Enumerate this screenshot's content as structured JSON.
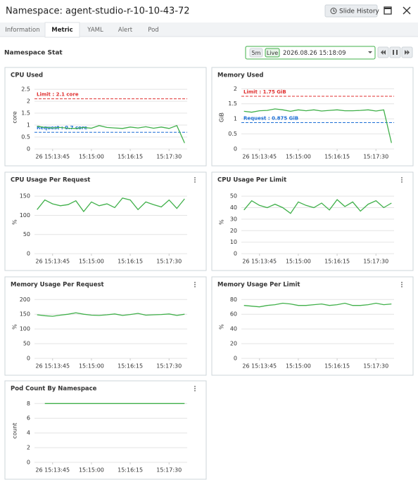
{
  "header": {
    "title": "Namespace: agent-studio-r-10-10-43-72",
    "slide_history": "Slide History"
  },
  "tabs": [
    "Information",
    "Metric",
    "YAML",
    "Alert",
    "Pod"
  ],
  "active_tab": 1,
  "section_title": "Namespace Stat",
  "controls": {
    "range": "5m",
    "live": "Live",
    "time": "2026.08.26 15:18:09"
  },
  "chart_data": [
    {
      "type": "line",
      "title": "CPU Used",
      "ylabel": "core",
      "color": "#40b04a",
      "x": [
        "15:13:15",
        "15:13:30",
        "15:13:45",
        "15:14:00",
        "15:14:15",
        "15:14:30",
        "15:14:45",
        "15:15:00",
        "15:15:15",
        "15:15:30",
        "15:15:45",
        "15:16:00",
        "15:16:15",
        "15:16:30",
        "15:16:45",
        "15:17:00",
        "15:17:15",
        "15:17:30",
        "15:17:45",
        "15:18:00"
      ],
      "values": [
        0.95,
        0.9,
        0.88,
        0.9,
        0.87,
        0.86,
        0.9,
        0.87,
        0.98,
        0.9,
        0.88,
        0.86,
        0.92,
        0.88,
        0.93,
        0.87,
        0.92,
        0.86,
        0.98,
        0.25
      ],
      "xlim": [
        "15:13:10",
        "15:18:05"
      ],
      "xticks": [
        {
          "value": "15:13:45",
          "label": "26 15:13:45"
        },
        "15:15:00",
        "15:16:15",
        "15:17:30"
      ],
      "ylim": [
        0,
        2.65
      ],
      "yticks": [
        0,
        0.5,
        1,
        1.5,
        2,
        2.5
      ],
      "reference_lines": [
        {
          "label": "Limit : 2.1 core",
          "value": 2.1,
          "color": "#e03131"
        },
        {
          "label": "Request : 0.7 core",
          "value": 0.7,
          "color": "#1c6fd6"
        }
      ]
    },
    {
      "type": "line",
      "title": "Memory Used",
      "ylabel": "GiB",
      "color": "#40b04a",
      "x": [
        "15:13:15",
        "15:13:30",
        "15:13:45",
        "15:14:00",
        "15:14:15",
        "15:14:30",
        "15:14:45",
        "15:15:00",
        "15:15:15",
        "15:15:30",
        "15:15:45",
        "15:16:00",
        "15:16:15",
        "15:16:30",
        "15:16:45",
        "15:17:00",
        "15:17:15",
        "15:17:30",
        "15:17:45",
        "15:18:00"
      ],
      "values": [
        1.25,
        1.22,
        1.27,
        1.28,
        1.33,
        1.3,
        1.25,
        1.3,
        1.27,
        1.3,
        1.26,
        1.28,
        1.3,
        1.27,
        1.27,
        1.28,
        1.3,
        1.26,
        1.3,
        0.2
      ],
      "xlim": [
        "15:13:10",
        "15:18:05"
      ],
      "xticks": [
        {
          "value": "15:13:45",
          "label": "26 15:13:45"
        },
        "15:15:00",
        "15:16:15",
        "15:17:30"
      ],
      "ylim": [
        0,
        2.1
      ],
      "yticks": [
        0,
        0.5,
        1,
        1.5,
        2
      ],
      "reference_lines": [
        {
          "label": "Limit : 1.75 GiB",
          "value": 1.75,
          "color": "#e03131"
        },
        {
          "label": "Request : 0.875 GiB",
          "value": 0.875,
          "color": "#1c6fd6"
        }
      ]
    },
    {
      "type": "line",
      "title": "CPU Usage Per Request",
      "ylabel": "%",
      "color": "#40b04a",
      "menu": true,
      "x": [
        "15:13:15",
        "15:13:30",
        "15:13:45",
        "15:14:00",
        "15:14:15",
        "15:14:30",
        "15:14:45",
        "15:15:00",
        "15:15:15",
        "15:15:30",
        "15:15:45",
        "15:16:00",
        "15:16:15",
        "15:16:30",
        "15:16:45",
        "15:17:00",
        "15:17:15",
        "15:17:30",
        "15:17:45",
        "15:18:00"
      ],
      "values": [
        115,
        140,
        130,
        125,
        128,
        138,
        110,
        135,
        125,
        130,
        120,
        145,
        140,
        115,
        135,
        128,
        122,
        140,
        118,
        143
      ],
      "xlim": [
        "15:13:10",
        "15:18:05"
      ],
      "xticks": [
        {
          "value": "15:13:45",
          "label": "26 15:13:45"
        },
        "15:15:00",
        "15:16:15",
        "15:17:30"
      ],
      "ylim": [
        0,
        165
      ],
      "yticks": [
        0,
        50,
        100,
        150
      ]
    },
    {
      "type": "line",
      "title": "CPU Usage Per Limit",
      "ylabel": "%",
      "color": "#40b04a",
      "menu": true,
      "x": [
        "15:13:15",
        "15:13:30",
        "15:13:45",
        "15:14:00",
        "15:14:15",
        "15:14:30",
        "15:14:45",
        "15:15:00",
        "15:15:15",
        "15:15:30",
        "15:15:45",
        "15:16:00",
        "15:16:15",
        "15:16:30",
        "15:16:45",
        "15:17:00",
        "15:17:15",
        "15:17:30",
        "15:17:45",
        "15:18:00"
      ],
      "values": [
        38,
        46,
        42,
        40,
        43,
        40,
        35,
        45,
        42,
        40,
        44,
        38,
        47,
        41,
        45,
        37,
        43,
        46,
        40,
        44
      ],
      "xlim": [
        "15:13:10",
        "15:18:05"
      ],
      "xticks": [
        {
          "value": "15:13:45",
          "label": "26 15:13:45"
        },
        "15:15:00",
        "15:16:15",
        "15:17:30"
      ],
      "ylim": [
        0,
        55
      ],
      "yticks": [
        0,
        10,
        20,
        30,
        40,
        50
      ]
    },
    {
      "type": "line",
      "title": "Memory Usage Per Request",
      "ylabel": "%",
      "color": "#40b04a",
      "menu": true,
      "x": [
        "15:13:15",
        "15:13:30",
        "15:13:45",
        "15:14:00",
        "15:14:15",
        "15:14:30",
        "15:14:45",
        "15:15:00",
        "15:15:15",
        "15:15:30",
        "15:15:45",
        "15:16:00",
        "15:16:15",
        "15:16:30",
        "15:16:45",
        "15:17:00",
        "15:17:15",
        "15:17:30",
        "15:17:45",
        "15:18:00"
      ],
      "values": [
        148,
        145,
        143,
        147,
        150,
        155,
        150,
        147,
        146,
        148,
        151,
        146,
        149,
        153,
        147,
        148,
        149,
        151,
        146,
        150
      ],
      "xlim": [
        "15:13:10",
        "15:18:05"
      ],
      "xticks": [
        {
          "value": "15:13:45",
          "label": "26 15:13:45"
        },
        "15:15:00",
        "15:16:15",
        "15:17:30"
      ],
      "ylim": [
        0,
        215
      ],
      "yticks": [
        0,
        50,
        100,
        150,
        200
      ]
    },
    {
      "type": "line",
      "title": "Memory Usage Per Limit",
      "ylabel": "%",
      "color": "#40b04a",
      "menu": true,
      "x": [
        "15:13:15",
        "15:13:30",
        "15:13:45",
        "15:14:00",
        "15:14:15",
        "15:14:30",
        "15:14:45",
        "15:15:00",
        "15:15:15",
        "15:15:30",
        "15:15:45",
        "15:16:00",
        "15:16:15",
        "15:16:30",
        "15:16:45",
        "15:17:00",
        "15:17:15",
        "15:17:30",
        "15:17:45",
        "15:18:00"
      ],
      "values": [
        72,
        71,
        70,
        72,
        73,
        75,
        74,
        72,
        72,
        73,
        74,
        72,
        73,
        75,
        72,
        72,
        73,
        75,
        73,
        74
      ],
      "xlim": [
        "15:13:10",
        "15:18:05"
      ],
      "xticks": [
        {
          "value": "15:13:45",
          "label": "26 15:13:45"
        },
        "15:15:00",
        "15:16:15",
        "15:17:30"
      ],
      "ylim": [
        0,
        86
      ],
      "yticks": [
        0,
        20,
        40,
        60,
        80
      ]
    },
    {
      "type": "line",
      "title": "Pod Count By Namespace",
      "ylabel": "count",
      "color": "#40b04a",
      "menu": true,
      "x": [
        "15:13:30",
        "15:13:45",
        "15:14:00",
        "15:14:15",
        "15:14:30",
        "15:14:45",
        "15:15:00",
        "15:15:15",
        "15:15:30",
        "15:15:45",
        "15:16:00",
        "15:16:15",
        "15:16:30",
        "15:16:45",
        "15:17:00",
        "15:17:15",
        "15:17:30",
        "15:17:45",
        "15:18:00"
      ],
      "values": [
        8,
        8,
        8,
        8,
        8,
        8,
        8,
        8,
        8,
        8,
        8,
        8,
        8,
        8,
        8,
        8,
        8,
        8,
        8
      ],
      "xlim": [
        "15:13:10",
        "15:18:05"
      ],
      "xticks": [
        {
          "value": "15:13:45",
          "label": "26 15:13:45"
        },
        "15:15:00",
        "15:16:15",
        "15:17:30"
      ],
      "ylim": [
        0,
        8.6
      ],
      "yticks": [
        0,
        2,
        4,
        6,
        8
      ]
    }
  ]
}
